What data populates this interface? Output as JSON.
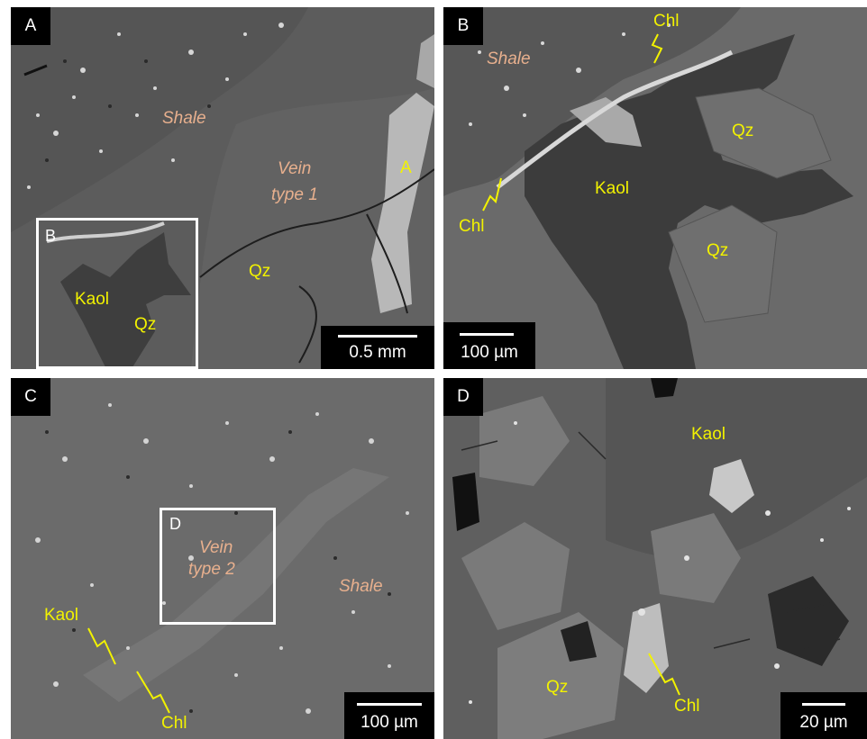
{
  "panels": {
    "a": {
      "letter": "A",
      "labels": {
        "shale": "Shale",
        "vein": "Vein\ntype 1",
        "vein_line1": "Vein",
        "vein_line2": "type 1",
        "qz": "Qz",
        "a_marker": "A",
        "kaol": "Kaol",
        "qz_inset": "Qz"
      },
      "inset_letter": "B",
      "scale": "0.5 mm"
    },
    "b": {
      "letter": "B",
      "labels": {
        "shale": "Shale",
        "chl_top": "Chl",
        "chl_left": "Chl",
        "kaol": "Kaol",
        "qz_top": "Qz",
        "qz_bottom": "Qz"
      },
      "scale": "100 µm"
    },
    "c": {
      "letter": "C",
      "labels": {
        "vein_line1": "Vein",
        "vein_line2": "type 2",
        "shale": "Shale",
        "kaol": "Kaol",
        "chl": "Chl"
      },
      "inset_letter": "D",
      "scale": "100 µm"
    },
    "d": {
      "letter": "D",
      "labels": {
        "kaol": "Kaol",
        "qz": "Qz",
        "chl": "Chl"
      },
      "scale": "20 µm"
    }
  },
  "colors": {
    "mineral_label": "#f2f200",
    "rock_label": "#e8b08e",
    "inset_frame": "#ffffff"
  }
}
